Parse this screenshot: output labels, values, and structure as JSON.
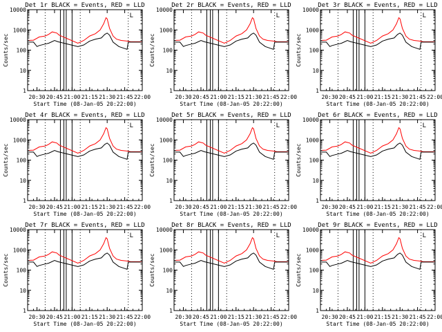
{
  "chart_data": {
    "type": "line",
    "y_scale": "log",
    "ylim": [
      1,
      10000
    ],
    "ylabel": "Counts/sec",
    "y_ticks": [
      "1",
      "10",
      "100",
      "1000",
      "10000"
    ],
    "x_ticks": [
      "20:30",
      "20:45",
      "21:00",
      "21:15",
      "21:30",
      "21:45",
      "22:00"
    ],
    "xlabel": "Start Time (08-Jan-05 20:22:00)",
    "xlim": [
      "20:22",
      "22:00"
    ],
    "dotted_time_marks": [
      "20:37",
      "21:07",
      "21:48"
    ],
    "vertical_bar_times": [
      "20:50",
      "20:53",
      "20:55",
      "21:00"
    ],
    "corner_marker": "L",
    "colors": {
      "events": "#000000",
      "lld": "#ff0000"
    },
    "panels": [
      {
        "title": "Det 1r BLACK = Events, RED = LLD"
      },
      {
        "title": "Det 2r BLACK = Events, RED = LLD"
      },
      {
        "title": "Det 3r BLACK = Events, RED = LLD"
      },
      {
        "title": "Det 4r BLACK = Events, RED = LLD"
      },
      {
        "title": "Det 5r BLACK = Events, RED = LLD"
      },
      {
        "title": "Det 6r BLACK = Events, RED = LLD"
      },
      {
        "title": "Det 7r BLACK = Events, RED = LLD"
      },
      {
        "title": "Det 8r BLACK = Events, RED = LLD"
      },
      {
        "title": "Det 9r BLACK = Events, RED = LLD"
      }
    ],
    "series": [
      {
        "color": "red",
        "x": [
          "20:22",
          "20:27",
          "20:32",
          "20:37",
          "20:40",
          "20:43",
          "20:47",
          "20:49",
          "21:05",
          "21:10",
          "21:15",
          "21:20",
          "21:24",
          "21:27",
          "21:29",
          "21:30",
          "21:32",
          "21:35",
          "21:38",
          "21:42",
          "21:47",
          "21:50",
          "21:55",
          "22:00"
        ],
        "y": [
          300,
          310,
          450,
          500,
          600,
          800,
          700,
          550,
          220,
          300,
          500,
          650,
          1000,
          2000,
          4000,
          3500,
          1200,
          500,
          350,
          300,
          280,
          260,
          260,
          260
        ]
      },
      {
        "color": "black",
        "x": [
          "20:22",
          "20:27",
          "20:30",
          "20:32",
          "20:37",
          "20:40",
          "20:45",
          "20:48",
          "21:05",
          "21:10",
          "21:15",
          "21:20",
          "21:25",
          "21:28",
          "21:30",
          "21:32",
          "21:35",
          "21:40",
          "21:45",
          "21:47",
          "21:48",
          "21:50",
          "22:00"
        ],
        "y": [
          250,
          250,
          150,
          170,
          200,
          220,
          300,
          260,
          150,
          180,
          280,
          350,
          400,
          600,
          700,
          550,
          250,
          150,
          120,
          110,
          250,
          250,
          250
        ]
      }
    ]
  }
}
